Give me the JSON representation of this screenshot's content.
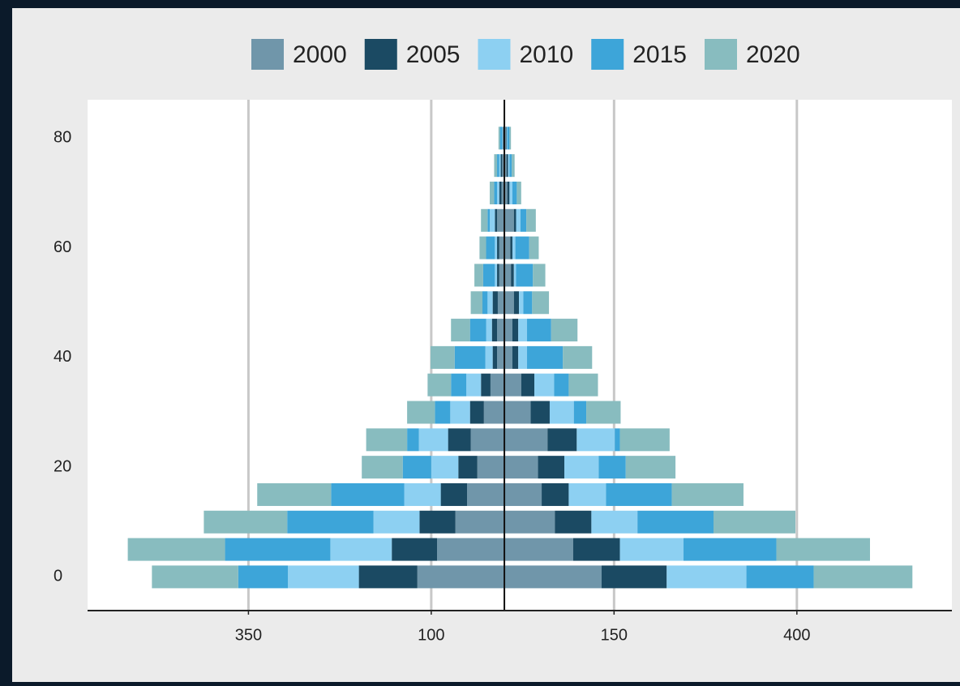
{
  "chart_data": {
    "type": "pyramid",
    "categories": [
      0,
      5,
      10,
      15,
      20,
      25,
      30,
      35,
      40,
      45,
      50,
      55,
      60,
      65,
      70,
      75,
      80
    ],
    "series": [
      {
        "name": "2000",
        "color": "#7096aa",
        "values_left": [
          119,
          92,
          67,
          51,
          37,
          46,
          28,
          19,
          10,
          10,
          9,
          7,
          7,
          10,
          4,
          3,
          1
        ],
        "values_right": [
          133,
          94,
          69,
          51,
          46,
          59,
          36,
          23,
          11,
          11,
          13,
          9,
          8,
          13,
          4,
          3,
          2
        ]
      },
      {
        "name": "2005",
        "color": "#1b4a63",
        "values_left": [
          80,
          62,
          49,
          36,
          26,
          31,
          19,
          13,
          6,
          7,
          7,
          3,
          3,
          3,
          3,
          2,
          1
        ],
        "values_right": [
          89,
          64,
          50,
          37,
          36,
          40,
          26,
          18,
          8,
          8,
          7,
          4,
          3,
          3,
          3,
          2,
          1
        ]
      },
      {
        "name": "2010",
        "color": "#8dd0f2",
        "values_left": [
          97,
          84,
          63,
          50,
          37,
          40,
          27,
          20,
          10,
          8,
          7,
          3,
          3,
          7,
          3,
          2,
          1
        ],
        "values_right": [
          109,
          87,
          63,
          51,
          47,
          52,
          33,
          27,
          12,
          12,
          6,
          3,
          4,
          6,
          4,
          2,
          1
        ]
      },
      {
        "name": "2015",
        "color": "#3da5d9",
        "values_left": [
          68,
          144,
          118,
          100,
          39,
          16,
          21,
          21,
          42,
          22,
          7,
          16,
          12,
          3,
          4,
          3,
          3
        ],
        "values_right": [
          92,
          127,
          104,
          90,
          37,
          7,
          17,
          20,
          49,
          33,
          12,
          23,
          19,
          8,
          6,
          3,
          3
        ]
      },
      {
        "name": "2020",
        "color": "#88bcbf",
        "values_left": [
          118,
          133,
          114,
          101,
          56,
          56,
          38,
          32,
          33,
          26,
          16,
          12,
          9,
          9,
          6,
          4,
          2
        ],
        "values_right": [
          135,
          128,
          112,
          98,
          68,
          68,
          47,
          40,
          40,
          36,
          23,
          17,
          13,
          13,
          6,
          4,
          2
        ]
      }
    ],
    "xlim": [
      -570,
      612
    ],
    "xticks": [
      {
        "value": -350,
        "label": "350"
      },
      {
        "value": -100,
        "label": "100"
      },
      150,
      400
    ],
    "ylim": [
      -6,
      87
    ],
    "yticks": [
      0,
      20,
      40,
      60,
      80
    ],
    "grid": true
  }
}
